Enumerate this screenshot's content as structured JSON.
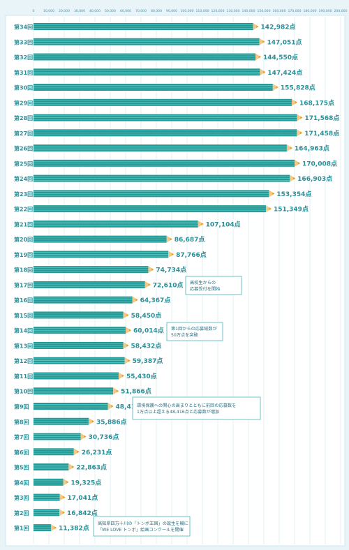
{
  "colors": {
    "background": "#e9f4f9",
    "plot_background": "#ffffff",
    "bar": "#1f9a96",
    "bar_stripe": "#7fd0cb",
    "pencil_wood": "#f3c98b",
    "pencil_tip": "#e8a21c",
    "label": "#2a8e97",
    "tick": "#4a93ad",
    "grid": "#cfe6f0",
    "note_border": "#6ec3c4"
  },
  "chart_data": {
    "type": "bar",
    "orientation": "horizontal",
    "title": "",
    "xlabel": "",
    "ylabel": "",
    "xlim": [
      0,
      200000
    ],
    "grid": true,
    "xticks": [
      0,
      10000,
      20000,
      30000,
      40000,
      50000,
      60000,
      70000,
      80000,
      90000,
      100000,
      110000,
      120000,
      130000,
      140000,
      150000,
      160000,
      170000,
      180000,
      190000,
      200000
    ],
    "xtick_labels": [
      "0",
      "10,000",
      "20,000",
      "30,000",
      "40,000",
      "50,000",
      "60,000",
      "70,000",
      "80,000",
      "90,000",
      "100,000",
      "110,000",
      "120,000",
      "130,000",
      "140,000",
      "150,000",
      "160,000",
      "170,000",
      "180,000",
      "190,000",
      "200,000"
    ],
    "categories": [
      "第34回",
      "第33回",
      "第32回",
      "第31回",
      "第30回",
      "第29回",
      "第28回",
      "第27回",
      "第26回",
      "第25回",
      "第24回",
      "第23回",
      "第22回",
      "第21回",
      "第20回",
      "第19回",
      "第18回",
      "第17回",
      "第16回",
      "第15回",
      "第14回",
      "第13回",
      "第12回",
      "第11回",
      "第10回",
      "第9回",
      "第8回",
      "第7回",
      "第6回",
      "第5回",
      "第4回",
      "第3回",
      "第2回",
      "第1回"
    ],
    "values": [
      142982,
      147051,
      144550,
      147424,
      155828,
      168175,
      171568,
      171458,
      164963,
      170008,
      166903,
      153354,
      151349,
      107104,
      86687,
      87766,
      74734,
      72610,
      64367,
      58450,
      60014,
      58432,
      59387,
      55430,
      51866,
      48416,
      35886,
      30736,
      26231,
      22863,
      19325,
      17041,
      16842,
      11382
    ],
    "data_labels": [
      "142,982点",
      "147,051点",
      "144,550点",
      "147,424点",
      "155,828点",
      "168,175点",
      "171,568点",
      "171,458点",
      "164,963点",
      "170,008点",
      "166,903点",
      "153,354点",
      "151,349点",
      "107,104点",
      "86,687点",
      "87,766点",
      "74,734点",
      "72,610点",
      "64,367点",
      "58,450点",
      "60,014点",
      "58,432点",
      "59,387点",
      "55,430点",
      "51,866点",
      "48,416点",
      "35,886点",
      "30,736点",
      "26,231点",
      "22,863点",
      "19,325点",
      "17,041点",
      "16,842点",
      "11,382点"
    ],
    "annotations": [
      {
        "category": "第17回",
        "lines": [
          "高校生からの",
          "応募受付を開始"
        ]
      },
      {
        "category": "第14回",
        "lines": [
          "第1回からの応募総数が",
          "50万点を突破"
        ]
      },
      {
        "category": "第9回",
        "lines": [
          "環境保護への関心の高まりとともに前回の応募数を",
          "1万点以上超える48,416点と応募数が増加"
        ]
      },
      {
        "category": "第1回",
        "lines": [
          "高知県四万十川の「トンボ王国」の誕生を機に",
          "「WE LOVE トンボ」絵画コンクールを開催"
        ]
      }
    ]
  }
}
